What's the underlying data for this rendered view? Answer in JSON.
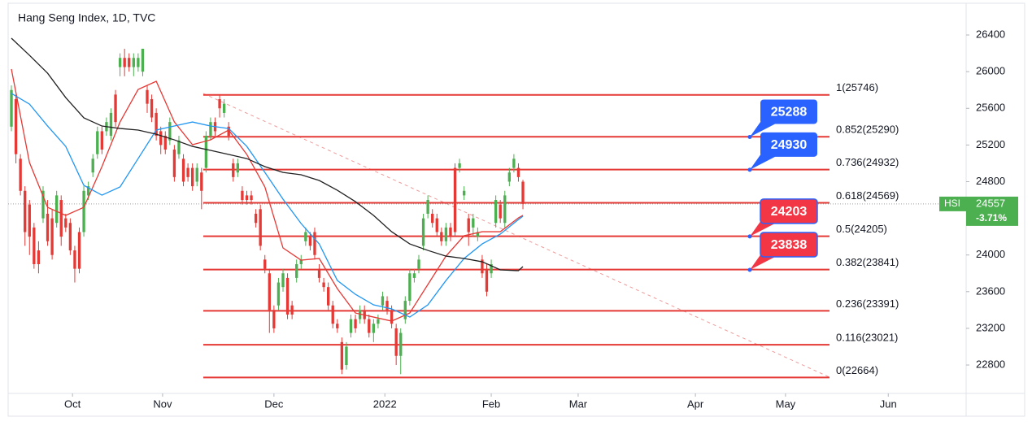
{
  "chart_data": {
    "type": "candlestick",
    "title": "Hang Seng Index, 1D, TVC",
    "up_color": "#4caf50",
    "down_color": "#e53935",
    "ylim": [
      22490,
      26693
    ],
    "yticks": [
      22800,
      23200,
      23600,
      24000,
      24400,
      24800,
      25200,
      25600,
      26000,
      26400
    ],
    "xlim": [
      -0.72,
      210.9
    ],
    "xticks": [
      {
        "value": 13.5,
        "label": "Oct"
      },
      {
        "value": 33.4,
        "label": "Nov"
      },
      {
        "value": 58,
        "label": "Dec"
      },
      {
        "value": 82.5,
        "label": "2022"
      },
      {
        "value": 106,
        "label": "Feb"
      },
      {
        "value": 125.2,
        "label": "Mar"
      },
      {
        "value": 151.1,
        "label": "Apr"
      },
      {
        "value": 171,
        "label": "May"
      },
      {
        "value": 193.7,
        "label": "Jun"
      }
    ],
    "open": [
      25400,
      25700,
      25050,
      24700,
      24550,
      24300,
      24050,
      24400,
      24450,
      24400,
      24350,
      24600,
      24400,
      24350,
      24050,
      24250,
      24250,
      24650,
      24900,
      25100,
      25350,
      25350,
      25300,
      25750,
      26050,
      26150,
      26150,
      26050,
      26050,
      26000,
      25800,
      25700,
      25550,
      25350,
      25300,
      25250,
      25150,
      25100,
      25050,
      24950,
      24950,
      24800,
      24900,
      24950,
      25300,
      25450,
      25700,
      25550,
      25400,
      25000,
      24900,
      24700,
      24650,
      24650,
      24450,
      24500,
      23950,
      23800,
      23400,
      23450,
      23650,
      23750,
      23450,
      23750,
      23900,
      24150,
      24200,
      24250,
      23850,
      23700,
      23650,
      23450,
      23250,
      23050,
      22800,
      23150,
      23300,
      23300,
      23400,
      23300,
      23150,
      23250,
      23450,
      23500,
      23400,
      23200,
      22900,
      23300,
      23500,
      23750,
      23850,
      24100,
      24450,
      24450,
      24400,
      24250,
      24150,
      24300,
      24950,
      24950,
      24650,
      24400,
      24300,
      24200,
      23950,
      23850,
      23800,
      24350,
      24550,
      24350,
      24800,
      24950,
      24950,
      24800
    ],
    "high": [
      25850,
      25750,
      25100,
      24750,
      24600,
      24350,
      24150,
      24750,
      24600,
      24500,
      24700,
      24650,
      24450,
      24400,
      24100,
      24300,
      24750,
      24800,
      25100,
      25400,
      25400,
      25500,
      25600,
      25800,
      26200,
      26250,
      26200,
      26200,
      26200,
      26250,
      25850,
      25750,
      25600,
      25400,
      25350,
      25500,
      25200,
      25300,
      25100,
      25000,
      25000,
      25000,
      24950,
      25350,
      25500,
      25500,
      25750,
      25700,
      25450,
      25050,
      25050,
      24750,
      24700,
      24700,
      24500,
      24550,
      24000,
      23850,
      23450,
      23750,
      23850,
      23800,
      23500,
      23950,
      24000,
      24300,
      24250,
      24300,
      23900,
      23750,
      23700,
      23500,
      23300,
      23100,
      23050,
      23350,
      23350,
      23450,
      23450,
      23350,
      23300,
      23350,
      23600,
      23550,
      23450,
      23250,
      23200,
      23550,
      23850,
      23850,
      24000,
      24450,
      24650,
      24500,
      24450,
      24300,
      24350,
      24350,
      25000,
      25050,
      24750,
      24450,
      24450,
      24300,
      24000,
      23900,
      23950,
      24650,
      24600,
      24700,
      24950,
      25100,
      25000,
      24820
    ],
    "low": [
      25350,
      25000,
      24650,
      24100,
      24000,
      23850,
      23800,
      24350,
      24100,
      23950,
      24300,
      24100,
      24250,
      24000,
      23700,
      23800,
      24200,
      24600,
      24850,
      25050,
      25100,
      25300,
      25250,
      25400,
      25950,
      25950,
      26000,
      25950,
      26000,
      25950,
      25550,
      25450,
      25250,
      25100,
      25100,
      25200,
      24800,
      25050,
      24750,
      24800,
      24700,
      24750,
      24500,
      24900,
      25250,
      25300,
      25500,
      25500,
      25250,
      24800,
      24850,
      24550,
      24550,
      24550,
      24300,
      24050,
      23800,
      23150,
      23150,
      23400,
      23600,
      23300,
      23300,
      23700,
      23850,
      24100,
      24050,
      23950,
      23700,
      23600,
      23400,
      23200,
      23150,
      22700,
      22750,
      23100,
      23150,
      23250,
      23250,
      23100,
      23050,
      23200,
      23400,
      23350,
      23200,
      22800,
      22700,
      23250,
      23450,
      23700,
      23800,
      24050,
      24400,
      24300,
      24200,
      24100,
      24100,
      24150,
      24200,
      24900,
      24600,
      24100,
      24200,
      24150,
      23750,
      23550,
      23750,
      24300,
      24350,
      24300,
      24750,
      24900,
      24800,
      24500
    ],
    "close": [
      25800,
      25100,
      24700,
      24250,
      24200,
      23900,
      23900,
      24700,
      24150,
      24000,
      24650,
      24200,
      24300,
      24050,
      23850,
      23850,
      24700,
      24750,
      25050,
      25350,
      25150,
      25450,
      25550,
      25450,
      26150,
      26050,
      26050,
      26150,
      26150,
      26250,
      25650,
      25500,
      25300,
      25200,
      25150,
      25450,
      24850,
      25250,
      24800,
      24850,
      24750,
      24950,
      24700,
      25300,
      25450,
      25350,
      25600,
      25650,
      25300,
      24850,
      25000,
      24600,
      24600,
      24600,
      24350,
      24100,
      23850,
      23400,
      23200,
      23700,
      23800,
      23350,
      23350,
      23900,
      23950,
      24250,
      24100,
      24000,
      23750,
      23650,
      23450,
      23250,
      23200,
      22750,
      23000,
      23300,
      23200,
      23400,
      23300,
      23150,
      23250,
      23300,
      23550,
      23400,
      23250,
      22900,
      23150,
      23500,
      23800,
      23800,
      23950,
      24400,
      24600,
      24350,
      24250,
      24150,
      24300,
      24200,
      24250,
      25000,
      24700,
      24250,
      24400,
      24250,
      23800,
      23600,
      23900,
      24600,
      24400,
      24650,
      24900,
      25050,
      24850,
      24557
    ],
    "moving_averages": [
      {
        "color": "#e53935",
        "x": [
          0,
          4,
          8,
          12,
          16,
          20,
          24,
          28,
          32,
          36,
          40,
          44,
          48,
          52,
          56,
          60,
          64,
          68,
          72,
          76,
          80,
          84,
          88,
          92,
          96,
          100,
          104,
          108,
          112,
          113
        ],
        "values": [
          26028,
          25008,
          24520,
          24432,
          24520,
          24964,
          25451,
          25806,
          25895,
          25451,
          25203,
          25256,
          25363,
          25097,
          24742,
          24077,
          23944,
          23962,
          23633,
          23367,
          23323,
          23279,
          23367,
          23678,
          23988,
          24210,
          24254,
          24254,
          24405,
          24432
        ]
      },
      {
        "color": "#2196f3",
        "x": [
          0,
          4,
          8,
          12,
          16,
          20,
          24,
          28,
          32,
          36,
          40,
          44,
          48,
          52,
          56,
          60,
          64,
          68,
          72,
          76,
          80,
          84,
          88,
          92,
          96,
          100,
          104,
          108,
          112,
          113
        ],
        "values": [
          25762,
          25646,
          25407,
          25185,
          24760,
          24653,
          24742,
          25052,
          25363,
          25407,
          25451,
          25407,
          25380,
          25185,
          24901,
          24609,
          24343,
          24121,
          23722,
          23571,
          23456,
          23412,
          23323,
          23456,
          23722,
          23962,
          24121,
          24228,
          24387,
          24423
        ]
      },
      {
        "color": "#212121",
        "x": [
          0,
          4,
          8,
          12,
          16,
          20,
          24,
          28,
          32,
          36,
          40,
          44,
          48,
          52,
          56,
          60,
          64,
          68,
          72,
          76,
          80,
          84,
          88,
          92,
          96,
          100,
          104,
          108,
          112,
          113
        ],
        "values": [
          26365,
          26178,
          25983,
          25717,
          25496,
          25407,
          25380,
          25363,
          25318,
          25256,
          25185,
          25141,
          25097,
          25052,
          24964,
          24901,
          24875,
          24813,
          24706,
          24582,
          24432,
          24254,
          24121,
          24050,
          23988,
          23962,
          23926,
          23838,
          23829,
          23873
        ]
      }
    ],
    "fib_color": "#e53935",
    "fib_levels": [
      {
        "value": 25746,
        "label": "1(25746)"
      },
      {
        "value": 25290,
        "label": "0.852(25290)"
      },
      {
        "value": 24932,
        "label": "0.736(24932)"
      },
      {
        "value": 24569,
        "label": "0.618(24569)"
      },
      {
        "value": 24205,
        "label": "0.5(24205)"
      },
      {
        "value": 23841,
        "label": "0.382(23841)"
      },
      {
        "value": 23391,
        "label": "0.236(23391)"
      },
      {
        "value": 23021,
        "label": "0.116(23021)"
      },
      {
        "value": 22664,
        "label": "0(22664)"
      }
    ],
    "callouts": [
      {
        "value": 25288,
        "color": "#2962ff"
      },
      {
        "value": 24930,
        "color": "#2962ff"
      },
      {
        "value": 24203,
        "color": "#f23645"
      },
      {
        "value": 23838,
        "color": "#f23645"
      }
    ],
    "last_price": {
      "symbol": "HSI",
      "value": 24557,
      "change": "-3.71%",
      "color": "#4caf50"
    }
  }
}
